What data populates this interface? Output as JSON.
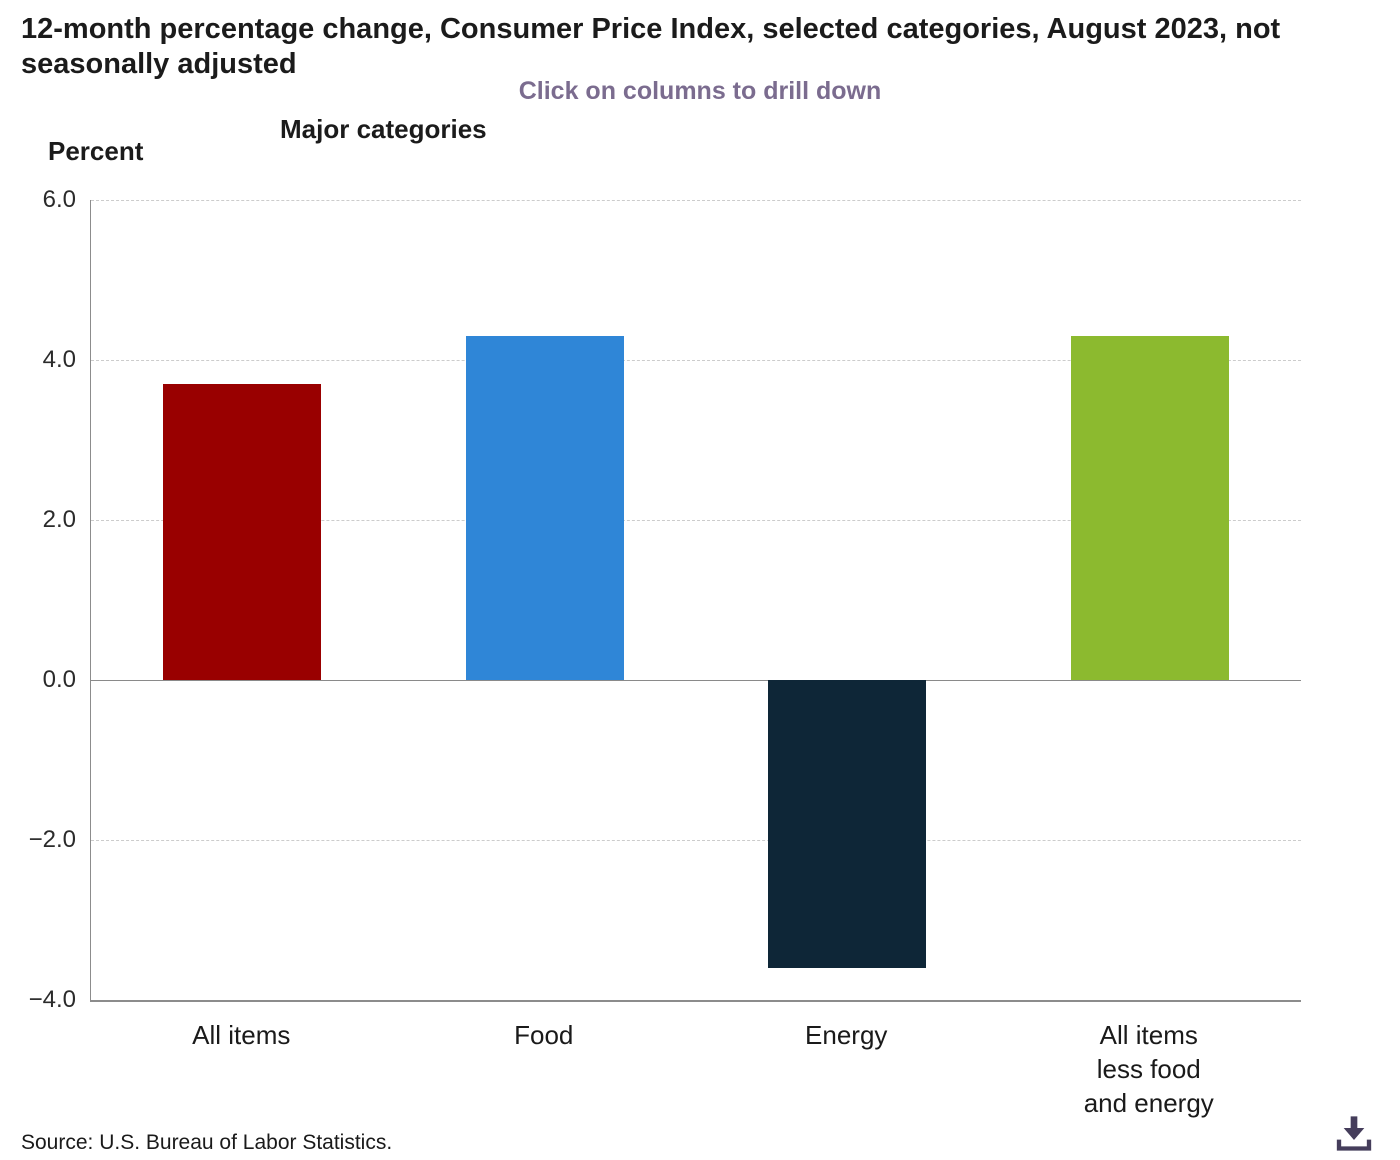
{
  "chart_data": {
    "type": "bar",
    "title": "12-month percentage change, Consumer Price Index, selected categories, August 2023, not seasonally adjusted",
    "subtitle": "Click on columns to drill down",
    "group_label": "Major categories",
    "ylabel": "Percent",
    "categories": [
      "All items",
      "Food",
      "Energy",
      "All items\nless food\nand energy"
    ],
    "values": [
      3.7,
      4.3,
      -3.6,
      4.3
    ],
    "bar_colors": [
      "#990000",
      "#2f86d7",
      "#0e2637",
      "#8cba2f"
    ],
    "ylim": [
      -4.0,
      6.0
    ],
    "yticks": [
      6.0,
      4.0,
      2.0,
      0.0,
      -2.0,
      -4.0
    ],
    "ytick_labels": [
      "6.0",
      "4.0",
      "2.0",
      "0.0",
      "−2.0",
      "−4.0"
    ],
    "grid": "horizontal-dashed",
    "legend": "none"
  },
  "footer": {
    "source": "Source: U.S. Bureau of Labor Statistics."
  },
  "colors": {
    "subtitle_text": "#7b6c8f",
    "axis_line": "#8c8c8c",
    "gridline": "#cccccc",
    "download_icon": "#453d5b"
  },
  "icons": {
    "download": "download-icon"
  }
}
